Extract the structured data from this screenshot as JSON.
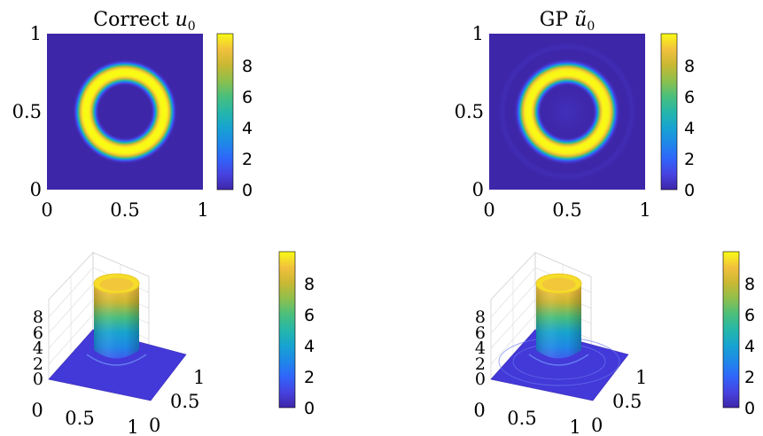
{
  "chart_data": [
    {
      "type": "heatmap",
      "title_text": "Correct ",
      "title_var": "u",
      "title_sub": "0",
      "xticks": [
        "0",
        "0.5",
        "1"
      ],
      "yticks": [
        "0",
        "0.5",
        "1"
      ],
      "xlim": [
        0,
        1
      ],
      "ylim": [
        0,
        1
      ],
      "colorbar_ticks": [
        "0",
        "2",
        "4",
        "6",
        "8"
      ],
      "clim": [
        0,
        10
      ],
      "field": {
        "shape": "ring",
        "center": [
          0.5,
          0.5
        ],
        "radius": 0.25,
        "width": 0.055,
        "peak": 10
      }
    },
    {
      "type": "heatmap",
      "title_text": "GP ",
      "title_var": "ũ",
      "title_sub": "0",
      "xticks": [
        "0",
        "0.5",
        "1"
      ],
      "yticks": [
        "0",
        "0.5",
        "1"
      ],
      "xlim": [
        0,
        1
      ],
      "ylim": [
        0,
        1
      ],
      "colorbar_ticks": [
        "0",
        "2",
        "4",
        "6",
        "8"
      ],
      "clim": [
        0,
        10
      ],
      "field": {
        "shape": "ring",
        "center": [
          0.5,
          0.5
        ],
        "radius": 0.25,
        "width": 0.055,
        "peak": 10,
        "ripple": true
      }
    },
    {
      "type": "surface",
      "xticks": [
        "0",
        "0.5",
        "1"
      ],
      "yticks": [
        "0",
        "0.5",
        "1"
      ],
      "zticks": [
        "0",
        "2",
        "4",
        "6",
        "8"
      ],
      "zlim": [
        0,
        10
      ],
      "colorbar_ticks": [
        "0",
        "2",
        "4",
        "6",
        "8"
      ],
      "clim": [
        0,
        10
      ]
    },
    {
      "type": "surface",
      "xticks": [
        "0",
        "0.5",
        "1"
      ],
      "yticks": [
        "0",
        "0.5",
        "1"
      ],
      "zticks": [
        "0",
        "2",
        "4",
        "6",
        "8"
      ],
      "zlim": [
        0,
        10
      ],
      "colorbar_ticks": [
        "0",
        "2",
        "4",
        "6",
        "8"
      ],
      "clim": [
        0,
        10
      ]
    }
  ],
  "colors": {
    "parula": [
      "#3e26a8",
      "#4743e1",
      "#2f65fa",
      "#1e88e8",
      "#17a4d0",
      "#26b7a9",
      "#4bbf7b",
      "#8fbf4c",
      "#c9b833",
      "#f2c13d",
      "#f9fb14"
    ]
  }
}
